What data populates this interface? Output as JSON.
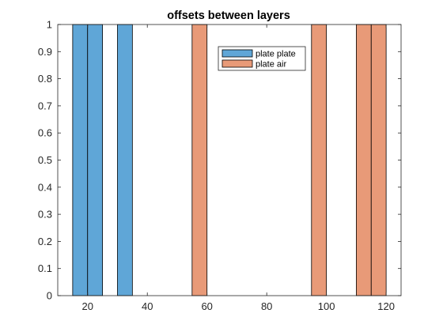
{
  "chart_data": {
    "type": "bar",
    "title": "offsets between layers",
    "xlabel": "",
    "ylabel": "",
    "xlim": [
      10,
      125
    ],
    "ylim": [
      0,
      1
    ],
    "xticks": [
      20,
      40,
      60,
      80,
      100,
      120
    ],
    "yticks": [
      0,
      0.1,
      0.2,
      0.3,
      0.4,
      0.5,
      0.6,
      0.7,
      0.8,
      0.9,
      1
    ],
    "xtick_labels": [
      "20",
      "40",
      "60",
      "80",
      "100",
      "120"
    ],
    "ytick_labels": [
      "0",
      "0.1",
      "0.2",
      "0.3",
      "0.4",
      "0.5",
      "0.6",
      "0.7",
      "0.8",
      "0.9",
      "1"
    ],
    "bar_width": 5,
    "grid": false,
    "legend_position": "top-center",
    "series": [
      {
        "name": "plate plate",
        "color": "#5FA6D7",
        "x": [
          17.5,
          22.5,
          32.5
        ],
        "values": [
          1,
          1,
          1
        ]
      },
      {
        "name": "plate air",
        "color": "#E89A78",
        "x": [
          57.5,
          97.5,
          112.5,
          117.5
        ],
        "values": [
          1,
          1,
          1,
          1
        ]
      }
    ]
  }
}
